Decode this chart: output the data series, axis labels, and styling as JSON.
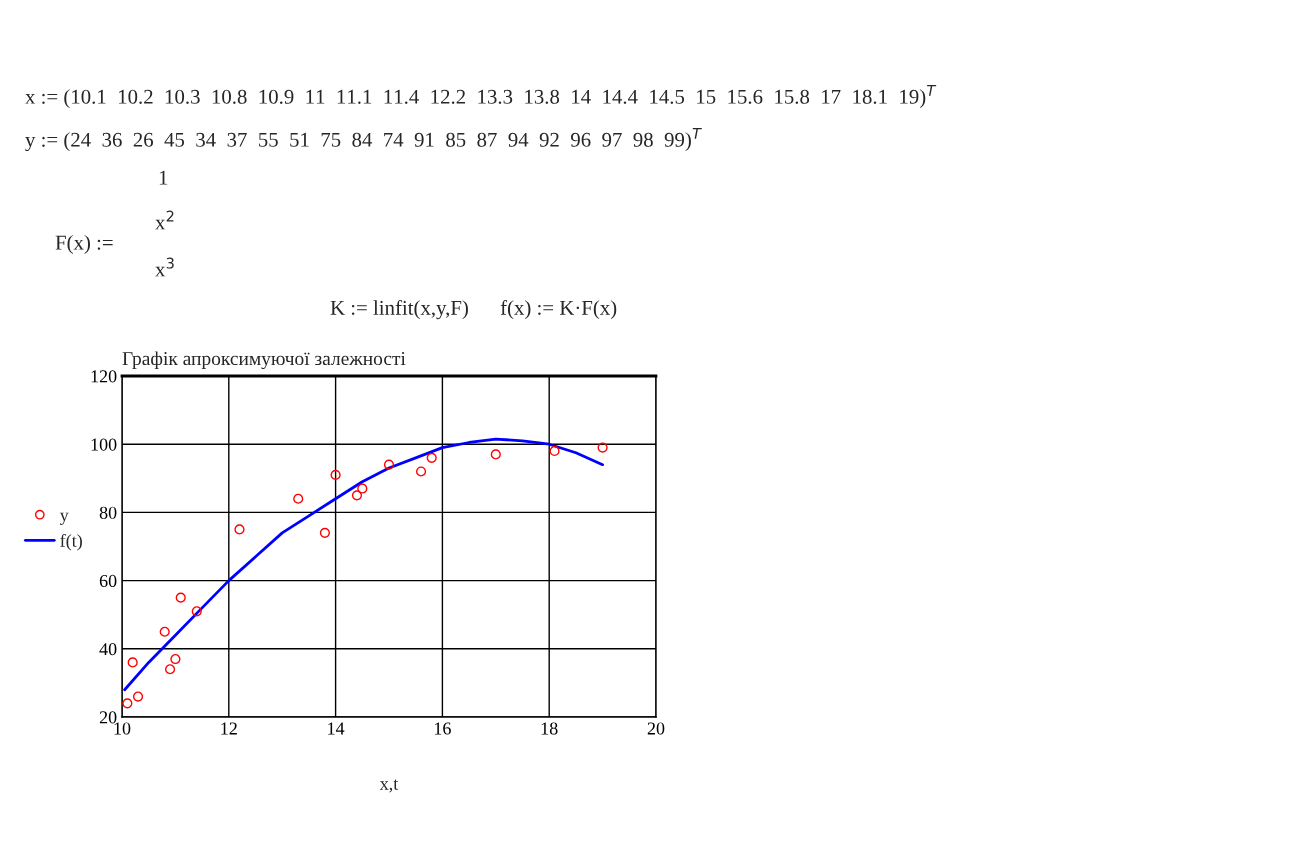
{
  "chart_data": {
    "type": "scatter",
    "title": "Графік апроксимуючої залежності",
    "xlabel": "x,t",
    "xlim": [
      10,
      20
    ],
    "xticks": [
      10,
      12,
      14,
      16,
      18,
      20
    ],
    "ylim": [
      20,
      120
    ],
    "yticks": [
      20,
      40,
      60,
      80,
      100,
      120
    ],
    "grid": true,
    "legend": "left",
    "series": [
      {
        "name": "y",
        "marker": "circle",
        "color": "#ff0000",
        "x": [
          10.1,
          10.2,
          10.3,
          10.8,
          10.9,
          11,
          11.1,
          11.4,
          12.2,
          13.3,
          13.8,
          14,
          14.4,
          14.5,
          15,
          15.6,
          15.8,
          17,
          18.1,
          19
        ],
        "values": [
          24,
          36,
          26,
          45,
          34,
          37,
          55,
          51,
          75,
          84,
          74,
          91,
          85,
          87,
          94,
          92,
          96,
          97,
          98,
          99
        ]
      },
      {
        "name": "f(t)",
        "type": "line",
        "line_style": "solid",
        "color": "#0000ff",
        "x": [
          10.05,
          10.5,
          11,
          11.5,
          12,
          12.5,
          13,
          13.5,
          14,
          14.5,
          15,
          15.5,
          16,
          16.5,
          17,
          17.5,
          18,
          18.5,
          19
        ],
        "values": [
          28,
          36,
          44,
          52,
          60,
          67,
          74,
          79,
          84,
          89,
          93,
          96,
          99,
          100.5,
          101.5,
          101,
          100,
          97.5,
          94
        ]
      }
    ],
    "annotations": [
      "x := (10.1  10.2  10.3  10.8  10.9  11  11.1  11.4  12.2  13.3  13.8  14  14.4  14.5  15  15.6  15.8  17  18.1  19)$^{T}$",
      "y := (24  36  26  45  34  37  55  51  75  84  74  91  85  87  94  92  96  97  98  99)$^{T}$",
      "F(x) :=",
      "1",
      "x$^{2}$",
      "x$^{3}$",
      "K := linfit(x,y,F)      f(x) := K·F(x)"
    ]
  }
}
